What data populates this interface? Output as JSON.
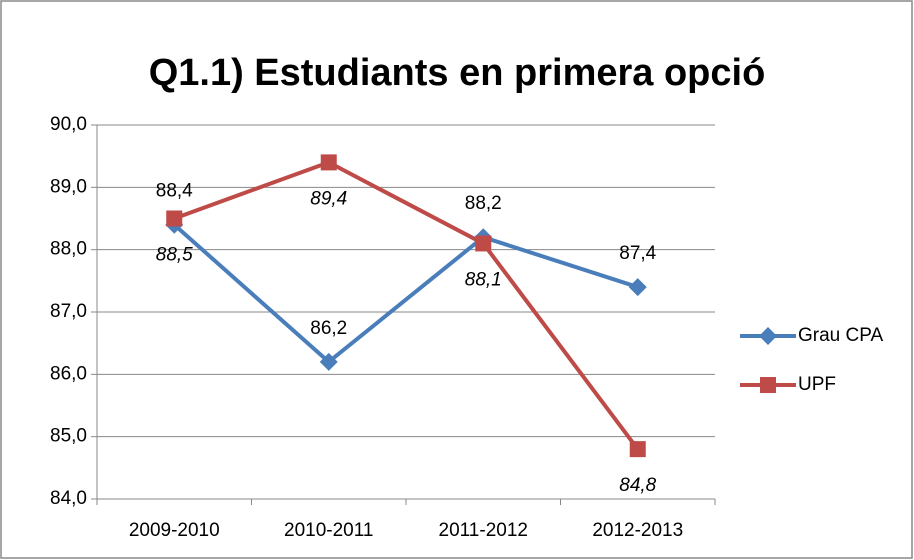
{
  "chart_data": {
    "type": "line",
    "title": "Q1.1) Estudiants en primera opció",
    "categories": [
      "2009-2010",
      "2010-2011",
      "2011-2012",
      "2012-2013"
    ],
    "series": [
      {
        "name": "Grau CPA",
        "color": "#4a7ebb",
        "marker": "diamond",
        "values": [
          88.4,
          86.2,
          88.2,
          87.4
        ],
        "value_labels": [
          "88,4",
          "86,2",
          "88,2",
          "87,4"
        ]
      },
      {
        "name": "UPF",
        "color": "#be4b48",
        "marker": "square",
        "values": [
          88.5,
          89.4,
          88.1,
          84.8
        ],
        "value_labels": [
          "88,5",
          "89,4",
          "88,1",
          "84,8"
        ]
      }
    ],
    "ylim": [
      84,
      90
    ],
    "yticks": [
      {
        "value": 84,
        "label": "84,0"
      },
      {
        "value": 85,
        "label": "85,0"
      },
      {
        "value": 86,
        "label": "86,0"
      },
      {
        "value": 87,
        "label": "87,0"
      },
      {
        "value": 88,
        "label": "88,0"
      },
      {
        "value": 89,
        "label": "89,0"
      },
      {
        "value": 90,
        "label": "90,0"
      }
    ],
    "grid": true,
    "legend": "right"
  }
}
